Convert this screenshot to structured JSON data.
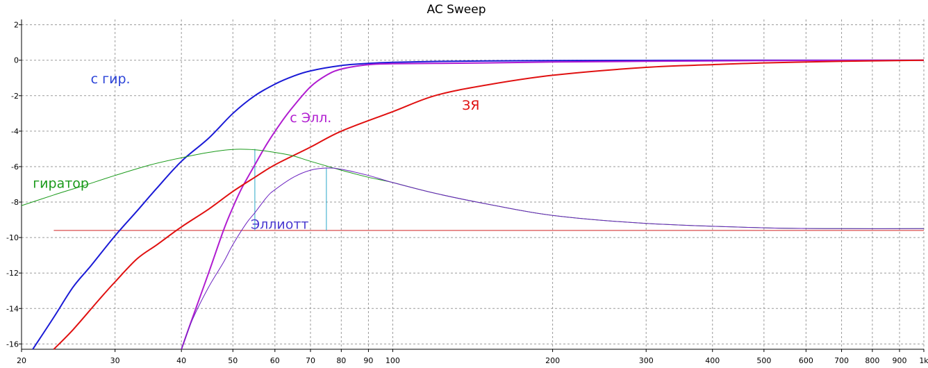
{
  "chart_data": {
    "type": "line",
    "title": "AC Sweep",
    "xscale": "log",
    "xlim": [
      20,
      1000
    ],
    "ylim": [
      -16.3,
      2.3
    ],
    "grid": true,
    "x_ticks": [
      {
        "v": 20,
        "label": "20"
      },
      {
        "v": 30,
        "label": "30"
      },
      {
        "v": 40,
        "label": "40"
      },
      {
        "v": 50,
        "label": "50"
      },
      {
        "v": 60,
        "label": "60"
      },
      {
        "v": 70,
        "label": "70"
      },
      {
        "v": 80,
        "label": "80"
      },
      {
        "v": 90,
        "label": "90"
      },
      {
        "v": 100,
        "label": "100"
      },
      {
        "v": 200,
        "label": "200"
      },
      {
        "v": 300,
        "label": "300"
      },
      {
        "v": 400,
        "label": "400"
      },
      {
        "v": 500,
        "label": "500"
      },
      {
        "v": 600,
        "label": "600"
      },
      {
        "v": 700,
        "label": "700"
      },
      {
        "v": 800,
        "label": "800"
      },
      {
        "v": 900,
        "label": "900"
      },
      {
        "v": 1000,
        "label": "1k"
      }
    ],
    "y_ticks": [
      {
        "v": 2,
        "label": "2"
      },
      {
        "v": 0,
        "label": "0"
      },
      {
        "v": -2,
        "label": "-2"
      },
      {
        "v": -4,
        "label": "-4"
      },
      {
        "v": -6,
        "label": "-6"
      },
      {
        "v": -8,
        "label": "-8"
      },
      {
        "v": -10,
        "label": "-10"
      },
      {
        "v": -12,
        "label": "-12"
      },
      {
        "v": -14,
        "label": "-14"
      },
      {
        "v": -16,
        "label": "-16"
      }
    ],
    "series": [
      {
        "name": "с гир.",
        "color": "#1a1ad6",
        "width": 2,
        "x": [
          21,
          23,
          25,
          27,
          30,
          33,
          36,
          40,
          45,
          50,
          55,
          60,
          65,
          70,
          80,
          90,
          100,
          120,
          150,
          200,
          300,
          500,
          1000
        ],
        "y": [
          -16.3,
          -14.5,
          -12.8,
          -11.6,
          -9.9,
          -8.5,
          -7.2,
          -5.7,
          -4.4,
          -3.0,
          -2.0,
          -1.35,
          -0.9,
          -0.6,
          -0.3,
          -0.18,
          -0.12,
          -0.07,
          -0.04,
          -0.02,
          -0.01,
          0.0,
          0.0
        ]
      },
      {
        "name": "с Элл.",
        "color": "#b01cd0",
        "width": 2,
        "x": [
          40,
          42,
          45,
          48,
          50,
          52,
          55,
          58,
          62,
          65,
          70,
          75,
          80,
          90,
          100,
          120,
          150,
          200,
          300,
          500,
          1000
        ],
        "y": [
          -16.3,
          -14.5,
          -12.0,
          -9.6,
          -8.3,
          -7.2,
          -5.9,
          -4.7,
          -3.4,
          -2.6,
          -1.5,
          -0.85,
          -0.5,
          -0.25,
          -0.2,
          -0.18,
          -0.15,
          -0.1,
          -0.06,
          -0.02,
          0.0
        ]
      },
      {
        "name": "ЗЯ",
        "color": "#e01010",
        "width": 2,
        "x": [
          23,
          25,
          28,
          30,
          33,
          36,
          40,
          45,
          50,
          55,
          60,
          70,
          80,
          100,
          120,
          150,
          200,
          300,
          400,
          500,
          700,
          1000
        ],
        "y": [
          -16.3,
          -15.2,
          -13.5,
          -12.5,
          -11.2,
          -10.4,
          -9.4,
          -8.4,
          -7.4,
          -6.6,
          -5.9,
          -4.9,
          -4.0,
          -2.9,
          -2.0,
          -1.4,
          -0.85,
          -0.4,
          -0.25,
          -0.15,
          -0.06,
          0.0
        ]
      },
      {
        "name": "гиратор",
        "color": "#1a9a1a",
        "width": 1,
        "x": [
          20,
          23,
          26,
          30,
          35,
          40,
          45,
          50,
          55,
          60,
          65,
          70,
          80,
          90,
          100,
          120,
          150,
          200,
          300,
          500,
          700,
          1000
        ],
        "y": [
          -8.2,
          -7.6,
          -7.1,
          -6.5,
          -5.9,
          -5.5,
          -5.2,
          -5.03,
          -5.05,
          -5.2,
          -5.4,
          -5.7,
          -6.2,
          -6.6,
          -6.9,
          -7.5,
          -8.1,
          -8.75,
          -9.2,
          -9.45,
          -9.5,
          -9.5
        ]
      },
      {
        "name": "Эллиотт",
        "color": "#6a20c0",
        "width": 1,
        "x": [
          40,
          42,
          45,
          48,
          50,
          53,
          55,
          58,
          60,
          65,
          70,
          75,
          80,
          90,
          100,
          120,
          150,
          200,
          300,
          500,
          700,
          1000
        ],
        "y": [
          -16.3,
          -14.6,
          -12.8,
          -11.4,
          -10.4,
          -9.2,
          -8.6,
          -7.7,
          -7.3,
          -6.6,
          -6.2,
          -6.08,
          -6.15,
          -6.5,
          -6.9,
          -7.5,
          -8.1,
          -8.75,
          -9.2,
          -9.45,
          -9.5,
          -9.5
        ]
      }
    ],
    "reference_line": {
      "y": -9.6,
      "x_from": 23,
      "x_to": 1000,
      "color": "#d02020"
    },
    "markers": [
      {
        "x": 55,
        "y_from": -5.0,
        "y_to": -9.6,
        "color": "#2aa7c8"
      },
      {
        "x": 75,
        "y_from": -6.08,
        "y_to": -9.6,
        "color": "#2aa7c8"
      }
    ],
    "annotations": [
      {
        "text": "с гир.",
        "x": 27,
        "y": -1.3,
        "color": "#2b43d8"
      },
      {
        "text": "с Элл.",
        "x": 64,
        "y": -3.5,
        "color": "#b01cd0"
      },
      {
        "text": "ЗЯ",
        "x": 135,
        "y": -2.8,
        "color": "#e01010"
      },
      {
        "text": "гиратор",
        "x": 21,
        "y": -7.2,
        "color": "#1a9a1a"
      },
      {
        "text": "Эллиотт",
        "x": 54,
        "y": -9.5,
        "color": "#4a3ad0"
      }
    ]
  }
}
